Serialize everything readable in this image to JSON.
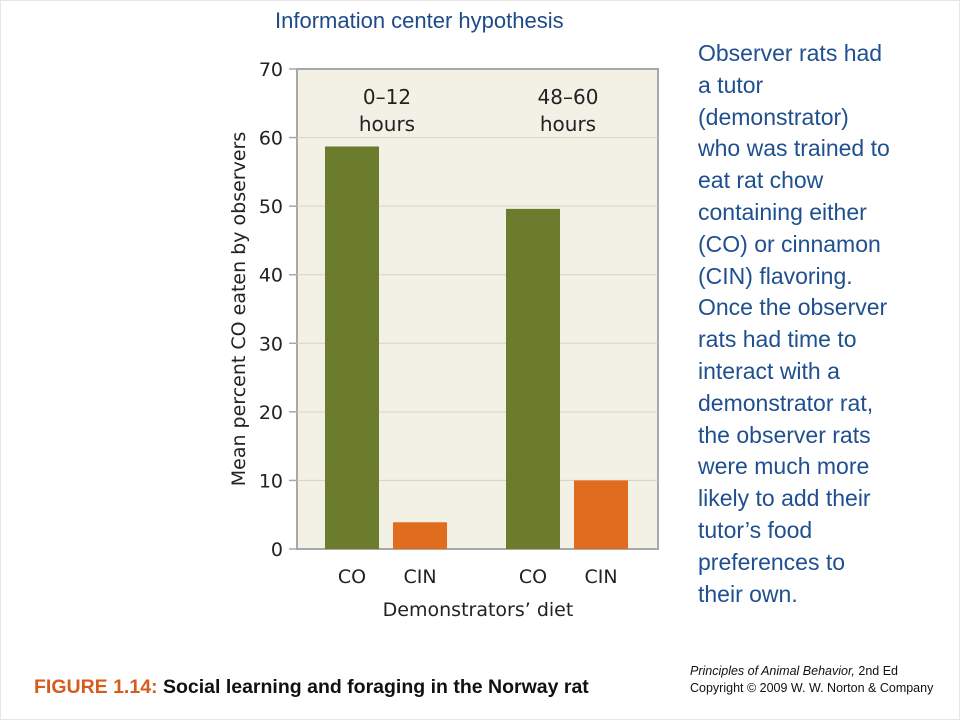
{
  "slide": {
    "title": "Information center hypothesis",
    "description_lines": [
      "Observer rats had",
      "a tutor",
      "(demonstrator)",
      "who was trained to",
      "eat rat chow",
      "containing either",
      "(CO) or cinnamon",
      "(CIN) flavoring.",
      "Once the observer",
      "rats had time to",
      "interact with a",
      "demonstrator rat,",
      "the observer rats",
      "were much more",
      "likely to add their",
      "tutor’s food",
      "preferences to",
      "their own."
    ]
  },
  "figure": {
    "label": "FIGURE 1.14:",
    "caption": "Social learning and foraging in the Norway rat",
    "book_title": "Principles of Animal Behavior,",
    "book_edition": " 2nd Ed",
    "copyright": "Copyright © 2009 W. W. Norton & Company"
  },
  "colors": {
    "co_bar": "#6b7c2c",
    "cin_bar": "#e06c1e",
    "plot_background": "#f3f0e6",
    "plot_border": "#a8a8a8",
    "title_text": "#1e4a8a"
  },
  "chart_data": {
    "type": "bar",
    "xlabel": "Demonstrators’ diet",
    "ylabel": "Mean percent CO eaten by observers",
    "ylim": [
      0,
      70
    ],
    "yticks": [
      0,
      10,
      20,
      30,
      40,
      50,
      60,
      70
    ],
    "grid": true,
    "groups": [
      {
        "name": "0–12 hours",
        "name_lines": [
          "0–12",
          "hours"
        ],
        "bars": [
          {
            "category": "CO",
            "value": 58.7,
            "color": "#6b7c2c"
          },
          {
            "category": "CIN",
            "value": 3.9,
            "color": "#e06c1e"
          }
        ]
      },
      {
        "name": "48–60 hours",
        "name_lines": [
          "48–60",
          "hours"
        ],
        "bars": [
          {
            "category": "CO",
            "value": 49.6,
            "color": "#6b7c2c"
          },
          {
            "category": "CIN",
            "value": 10.0,
            "color": "#e06c1e"
          }
        ]
      }
    ]
  }
}
